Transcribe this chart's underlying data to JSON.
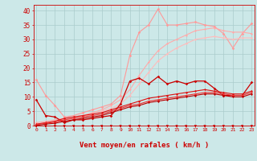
{
  "xlabel": "Vent moyen/en rafales ( km/h )",
  "background_color": "#cce8e8",
  "grid_color": "#b0d0d0",
  "ylim": [
    0,
    42
  ],
  "xlim": [
    0,
    23
  ],
  "yticks": [
    0,
    5,
    10,
    15,
    20,
    25,
    30,
    35,
    40
  ],
  "xticks": [
    0,
    1,
    2,
    3,
    4,
    5,
    6,
    7,
    8,
    9,
    10,
    11,
    12,
    13,
    14,
    15,
    16,
    17,
    18,
    19,
    20,
    21,
    22,
    23
  ],
  "series": [
    {
      "name": "pink_upper_jagged",
      "color": "#ff9999",
      "linewidth": 0.8,
      "marker": "D",
      "markersize": 1.8,
      "x": [
        0,
        1,
        2,
        3,
        4,
        5,
        6,
        7,
        8,
        9,
        10,
        11,
        12,
        13,
        14,
        15,
        16,
        17,
        18,
        19,
        20,
        21,
        22,
        23
      ],
      "y": [
        16.0,
        10.5,
        7.0,
        3.0,
        3.5,
        4.5,
        5.5,
        6.5,
        7.5,
        10.5,
        24.5,
        32.5,
        35.0,
        40.5,
        35.0,
        35.0,
        35.5,
        36.0,
        35.0,
        34.5,
        32.0,
        27.0,
        32.0,
        35.5
      ]
    },
    {
      "name": "pink_line1",
      "color": "#ffaaaa",
      "linewidth": 0.8,
      "marker": "D",
      "markersize": 1.5,
      "x": [
        0,
        1,
        2,
        3,
        4,
        5,
        6,
        7,
        8,
        9,
        10,
        11,
        12,
        13,
        14,
        15,
        16,
        17,
        18,
        19,
        20,
        21,
        22,
        23
      ],
      "y": [
        1.0,
        1.5,
        2.0,
        2.5,
        3.0,
        3.5,
        4.5,
        5.5,
        7.0,
        9.0,
        12.5,
        17.5,
        22.0,
        26.0,
        28.5,
        30.0,
        31.5,
        33.0,
        33.5,
        34.0,
        33.0,
        32.5,
        32.5,
        32.0
      ]
    },
    {
      "name": "pink_line2",
      "color": "#ffbbbb",
      "linewidth": 0.8,
      "marker": "D",
      "markersize": 1.5,
      "x": [
        0,
        1,
        2,
        3,
        4,
        5,
        6,
        7,
        8,
        9,
        10,
        11,
        12,
        13,
        14,
        15,
        16,
        17,
        18,
        19,
        20,
        21,
        22,
        23
      ],
      "y": [
        0.5,
        1.0,
        1.5,
        2.0,
        2.5,
        3.0,
        4.0,
        5.0,
        6.0,
        7.5,
        10.5,
        14.5,
        18.5,
        22.5,
        25.0,
        27.0,
        28.5,
        30.0,
        30.5,
        31.0,
        30.5,
        30.0,
        30.5,
        30.5
      ]
    },
    {
      "name": "red_jagged_upper",
      "color": "#cc0000",
      "linewidth": 0.9,
      "marker": "D",
      "markersize": 1.8,
      "x": [
        0,
        1,
        2,
        3,
        4,
        5,
        6,
        7,
        8,
        9,
        10,
        11,
        12,
        13,
        14,
        15,
        16,
        17,
        18,
        19,
        20,
        21,
        22,
        23
      ],
      "y": [
        9.0,
        3.5,
        3.0,
        1.0,
        2.0,
        2.0,
        2.5,
        3.0,
        3.5,
        7.5,
        15.5,
        16.5,
        14.5,
        17.0,
        14.5,
        15.5,
        14.5,
        15.5,
        15.5,
        13.0,
        10.5,
        10.5,
        10.5,
        15.0
      ]
    },
    {
      "name": "red_line1",
      "color": "#dd1111",
      "linewidth": 0.8,
      "marker": "D",
      "markersize": 1.5,
      "x": [
        0,
        1,
        2,
        3,
        4,
        5,
        6,
        7,
        8,
        9,
        10,
        11,
        12,
        13,
        14,
        15,
        16,
        17,
        18,
        19,
        20,
        21,
        22,
        23
      ],
      "y": [
        0.5,
        1.0,
        1.5,
        2.5,
        3.0,
        3.5,
        4.0,
        4.5,
        5.5,
        6.5,
        7.5,
        8.5,
        9.5,
        10.0,
        10.5,
        11.0,
        11.5,
        12.0,
        12.5,
        12.0,
        11.5,
        11.0,
        11.0,
        12.0
      ]
    },
    {
      "name": "red_line2",
      "color": "#ee3333",
      "linewidth": 0.8,
      "marker": "D",
      "markersize": 1.5,
      "x": [
        0,
        1,
        2,
        3,
        4,
        5,
        6,
        7,
        8,
        9,
        10,
        11,
        12,
        13,
        14,
        15,
        16,
        17,
        18,
        19,
        20,
        21,
        22,
        23
      ],
      "y": [
        0.3,
        0.8,
        1.2,
        2.0,
        2.5,
        3.0,
        3.5,
        4.0,
        5.0,
        6.0,
        7.0,
        7.5,
        8.5,
        9.0,
        9.5,
        10.0,
        10.5,
        11.0,
        11.5,
        11.5,
        11.0,
        10.5,
        10.5,
        11.5
      ]
    },
    {
      "name": "red_line3",
      "color": "#bb0000",
      "linewidth": 0.8,
      "marker": "D",
      "markersize": 1.5,
      "x": [
        0,
        1,
        2,
        3,
        4,
        5,
        6,
        7,
        8,
        9,
        10,
        11,
        12,
        13,
        14,
        15,
        16,
        17,
        18,
        19,
        20,
        21,
        22,
        23
      ],
      "y": [
        0.0,
        0.5,
        0.8,
        1.5,
        2.0,
        2.5,
        3.0,
        3.5,
        4.5,
        5.5,
        6.5,
        7.0,
        8.0,
        8.5,
        9.0,
        9.5,
        10.0,
        10.5,
        11.0,
        11.0,
        10.5,
        10.0,
        10.0,
        11.0
      ]
    }
  ]
}
